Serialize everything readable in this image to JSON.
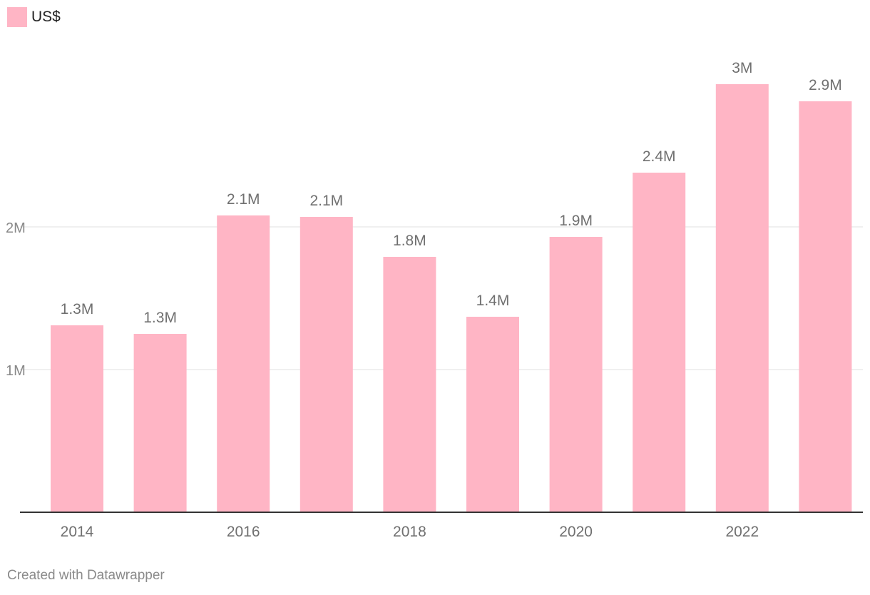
{
  "legend": {
    "label": "US$",
    "color": "#ffb5c5"
  },
  "credit": "Created with Datawrapper",
  "chart_data": {
    "type": "bar",
    "categories": [
      "2014",
      "2015",
      "2016",
      "2017",
      "2018",
      "2019",
      "2020",
      "2021",
      "2022",
      "2023"
    ],
    "x_tick_labels": [
      "2014",
      "",
      "2016",
      "",
      "2018",
      "",
      "2020",
      "",
      "2022",
      ""
    ],
    "series": [
      {
        "values": [
          1.31,
          1.25,
          2.08,
          2.07,
          1.79,
          1.37,
          1.93,
          2.38,
          3.0,
          2.88
        ],
        "labels": [
          "1.3M",
          "1.3M",
          "2.1M",
          "2.1M",
          "1.8M",
          "1.4M",
          "1.9M",
          "2.4M",
          "3M",
          "2.9M"
        ],
        "color": "#ffb5c5"
      }
    ],
    "y_ticks": [
      {
        "value": 1,
        "label": "1M"
      },
      {
        "value": 2,
        "label": "2M"
      }
    ],
    "ylim": [
      0,
      3.5
    ],
    "grid": true,
    "colors": {
      "grid": "#e2e2e2",
      "axis": "#333333",
      "label": "#707070",
      "tick": "#888888"
    }
  }
}
